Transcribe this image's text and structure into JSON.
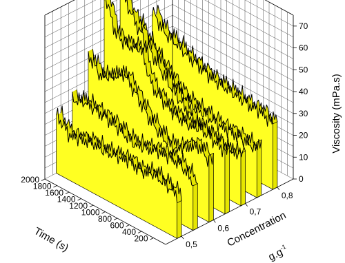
{
  "chart_data": {
    "type": "area",
    "title": "",
    "subtitle": "",
    "xlabel": "Time (s)",
    "ylabel": "Concentration",
    "ylabel_unit": "g.g",
    "ylabel_unit_exponent": "-1",
    "zlabel": "Viscosity (mPa.s)",
    "time_ticks": [
      "2000",
      "1800",
      "1600",
      "1400",
      "1200",
      "1000",
      "800",
      "600",
      "400",
      "200"
    ],
    "concentration_ticks": [
      "0,5",
      "0,6",
      "0,7",
      "0,8"
    ],
    "viscosity_ticks": [
      "0",
      "10",
      "20",
      "30",
      "40",
      "50",
      "60",
      "70"
    ],
    "xlim": [
      0,
      2000
    ],
    "concentration_range": [
      0.45,
      0.85
    ],
    "zlim": [
      0,
      75
    ],
    "grid": true,
    "legend": "none",
    "colors": {
      "fill": "#ffff22",
      "fill_dark": "#e6e600",
      "line": "#000000",
      "grid": "#4a4a4a"
    },
    "series": [
      {
        "name": "",
        "concentration": 0.5,
        "x": [
          0,
          200,
          400,
          600,
          800,
          1000,
          1200,
          1400,
          1600,
          1800,
          2000
        ],
        "values": [
          20,
          22,
          24,
          22,
          24,
          23,
          22,
          23,
          22,
          21,
          27
        ]
      },
      {
        "name": "",
        "concentration": 0.55,
        "x": [
          0,
          200,
          400,
          600,
          800,
          1000,
          1200,
          1400,
          1600,
          1800,
          2000
        ],
        "values": [
          22,
          27,
          28,
          28,
          26,
          25,
          28,
          30,
          31,
          32,
          30
        ]
      },
      {
        "name": "",
        "concentration": 0.6,
        "x": [
          0,
          200,
          400,
          600,
          800,
          1000,
          1200,
          1400,
          1600,
          1800,
          2000
        ],
        "values": [
          28,
          33,
          29,
          25,
          28,
          33,
          40,
          47,
          43,
          40,
          47
        ]
      },
      {
        "name": "",
        "concentration": 0.65,
        "x": [
          0,
          200,
          400,
          600,
          800,
          1000,
          1200,
          1400,
          1600,
          1800,
          2000
        ],
        "values": [
          29,
          31,
          33,
          32,
          33,
          36,
          40,
          55,
          53,
          55,
          71
        ]
      },
      {
        "name": "",
        "concentration": 0.7,
        "x": [
          0,
          200,
          400,
          600,
          800,
          1000,
          1200,
          1400,
          1600,
          1800,
          2000
        ],
        "values": [
          24,
          22,
          23,
          25,
          28,
          33,
          38,
          45,
          52,
          60,
          70
        ]
      },
      {
        "name": "",
        "concentration": 0.75,
        "x": [
          0,
          200,
          400,
          600,
          800,
          1000,
          1200,
          1400,
          1600,
          1800,
          2000
        ],
        "values": [
          22,
          23,
          24,
          24,
          25,
          26,
          28,
          33,
          38,
          44,
          52
        ]
      },
      {
        "name": "",
        "concentration": 0.8,
        "x": [
          0,
          200,
          400,
          600,
          800,
          1000,
          1200,
          1400,
          1600,
          1800,
          2000
        ],
        "values": [
          30,
          33,
          33,
          34,
          35,
          36,
          38,
          40,
          43,
          45,
          52
        ]
      }
    ]
  }
}
